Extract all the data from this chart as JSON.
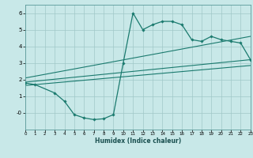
{
  "bg_color": "#c8e8e8",
  "line_color": "#1a7a6e",
  "grid_color": "#a0c8c8",
  "xlabel": "Humidex (Indice chaleur)",
  "ylim": [
    -1.0,
    6.5
  ],
  "xlim": [
    0,
    23
  ],
  "yticks": [
    0,
    1,
    2,
    3,
    4,
    5,
    6
  ],
  "ytick_labels": [
    "-0",
    "1",
    "2",
    "3",
    "4",
    "5",
    "6"
  ],
  "xticks": [
    0,
    1,
    2,
    3,
    4,
    5,
    6,
    7,
    8,
    9,
    10,
    11,
    12,
    13,
    14,
    15,
    16,
    17,
    18,
    19,
    20,
    21,
    22,
    23
  ],
  "curve1_x": [
    0,
    1,
    3,
    4,
    5,
    6,
    7,
    8,
    9,
    10,
    11,
    12,
    13,
    14,
    15,
    16,
    17,
    18,
    19,
    20,
    21,
    22,
    23
  ],
  "curve1_y": [
    1.8,
    1.7,
    1.2,
    0.7,
    -0.1,
    -0.3,
    -0.4,
    -0.35,
    -0.1,
    3.0,
    6.0,
    5.0,
    5.3,
    5.5,
    5.5,
    5.3,
    4.4,
    4.3,
    4.6,
    4.4,
    4.3,
    4.2,
    3.2
  ],
  "line1_x": [
    0,
    23
  ],
  "line1_y": [
    1.85,
    3.2
  ],
  "line2_x": [
    0,
    23
  ],
  "line2_y": [
    2.1,
    4.6
  ],
  "line3_x": [
    0,
    23
  ],
  "line3_y": [
    1.65,
    2.85
  ],
  "spine_color": "#5a9a9a"
}
